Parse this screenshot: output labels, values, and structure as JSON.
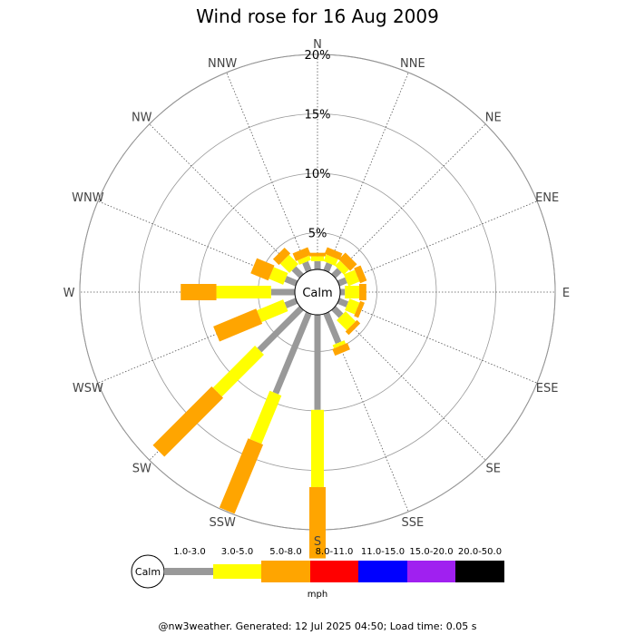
{
  "title": "Wind rose for 16 Aug 2009",
  "footer": "@nw3weather. Generated: 12 Jul 2025 04:50; Load time: 0.05 s",
  "chart_data": {
    "type": "wind-rose",
    "title": "Wind rose for 16 Aug 2009",
    "directions": [
      "N",
      "NNE",
      "NE",
      "ENE",
      "E",
      "ESE",
      "SE",
      "SSE",
      "S",
      "SSW",
      "SW",
      "WSW",
      "W",
      "WNW",
      "NW",
      "NNW"
    ],
    "rings": [
      5,
      10,
      15,
      20
    ],
    "ring_labels": [
      "5%",
      "10%",
      "15%",
      "20%"
    ],
    "rmax": 20,
    "calm_label": "Calm",
    "unit_label": "mph",
    "speed_bins": [
      {
        "label": "1.0-3.0",
        "color": "#999999"
      },
      {
        "label": "3.0-5.0",
        "color": "#ffff00"
      },
      {
        "label": "5.0-8.0",
        "color": "#ffa500"
      },
      {
        "label": "8.0-11.0",
        "color": "#ff0000"
      },
      {
        "label": "11.0-15.0",
        "color": "#0000ff"
      },
      {
        "label": "15.0-20.0",
        "color": "#a020f0"
      },
      {
        "label": "20.0-50.0",
        "color": "#000000"
      }
    ],
    "cumulative_percent": [
      [
        0.7,
        1.1,
        1.4
      ],
      [
        0.7,
        1.3,
        1.9
      ],
      [
        0.7,
        1.3,
        2.1
      ],
      [
        0.7,
        1.7,
        2.3
      ],
      [
        0.4,
        1.6,
        2.2
      ],
      [
        0.8,
        1.7,
        2.1
      ],
      [
        0.9,
        2.1,
        2.5
      ],
      [
        2.7,
        3.0,
        3.6
      ],
      [
        8.0,
        14.5,
        20.5
      ],
      [
        7.3,
        11.7,
        18.0
      ],
      [
        5.0,
        10.0,
        17.0
      ],
      [
        1.0,
        3.4,
        7.3
      ],
      [
        2.0,
        6.6,
        9.6
      ],
      [
        1.0,
        2.3,
        3.9
      ],
      [
        0.9,
        2.0,
        2.7
      ],
      [
        0.8,
        1.2,
        1.9
      ]
    ]
  }
}
